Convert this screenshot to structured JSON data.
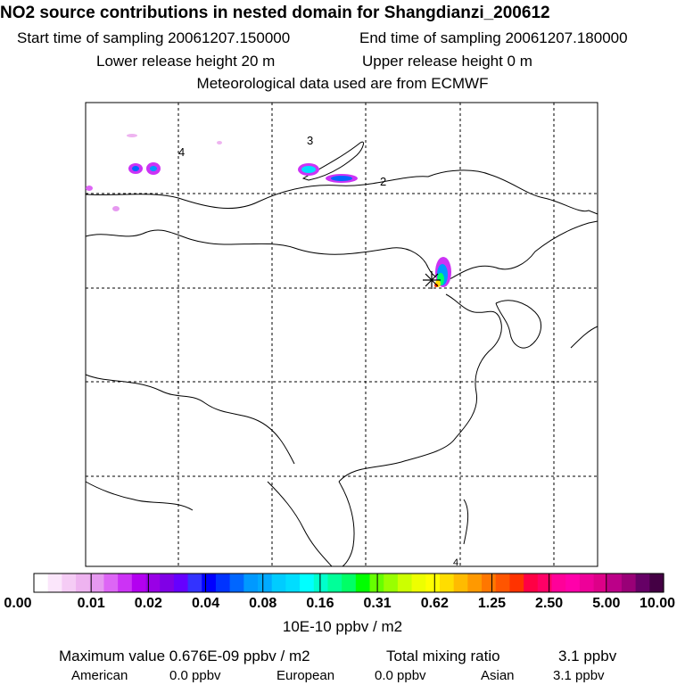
{
  "header": {
    "title": "NO2 source contributions in nested domain for Shangdianzi_200612",
    "start_label": "Start time of sampling 20061207.150000",
    "end_label": "End time of sampling 20061207.180000",
    "lower_label": "Lower release height   20 m",
    "upper_label": "Upper release height    0 m",
    "met_label": "Meteorological data used are from ECMWF"
  },
  "map": {
    "labels": [
      "4",
      "3",
      "2",
      "4"
    ],
    "grid": "dashed"
  },
  "colorbar": {
    "tick_labels": [
      "0.00",
      "0.01",
      "0.02",
      "0.04",
      "0.08",
      "0.16",
      "0.31",
      "0.62",
      "1.25",
      "2.50",
      "5.00",
      "10.00"
    ],
    "unit": "10E-10 ppbv / m2",
    "colors": [
      "#ffffff",
      "#fbe6fb",
      "#f5ccf5",
      "#eeb3f0",
      "#e699f0",
      "#dd66f5",
      "#cc33f5",
      "#b300f0",
      "#9900e6",
      "#8000e6",
      "#6600ff",
      "#3333ff",
      "#0000ff",
      "#0033ff",
      "#0066ff",
      "#0099ff",
      "#00aaff",
      "#00ccff",
      "#00ddff",
      "#00ffff",
      "#00ffcc",
      "#00ff99",
      "#00ff66",
      "#00ff00",
      "#66ff00",
      "#99ff00",
      "#ccff00",
      "#eeff00",
      "#ffff00",
      "#ffdd00",
      "#ffbb00",
      "#ff9900",
      "#ff7700",
      "#ff5500",
      "#ff3300",
      "#ff0044",
      "#ff0066",
      "#ff0099",
      "#ff00aa",
      "#ee0099",
      "#dd0088",
      "#bb0088",
      "#990077",
      "#660066",
      "#440044"
    ]
  },
  "footer": {
    "max_label": "Maximum value  0.676E-09 ppbv / m2",
    "total_label": "Total mixing ratio",
    "total_value": "3.1 ppbv",
    "american_label": "American",
    "american_value": "0.0 ppbv",
    "european_label": "European",
    "european_value": "0.0 ppbv",
    "asian_label": "Asian",
    "asian_value": "3.1 ppbv"
  }
}
